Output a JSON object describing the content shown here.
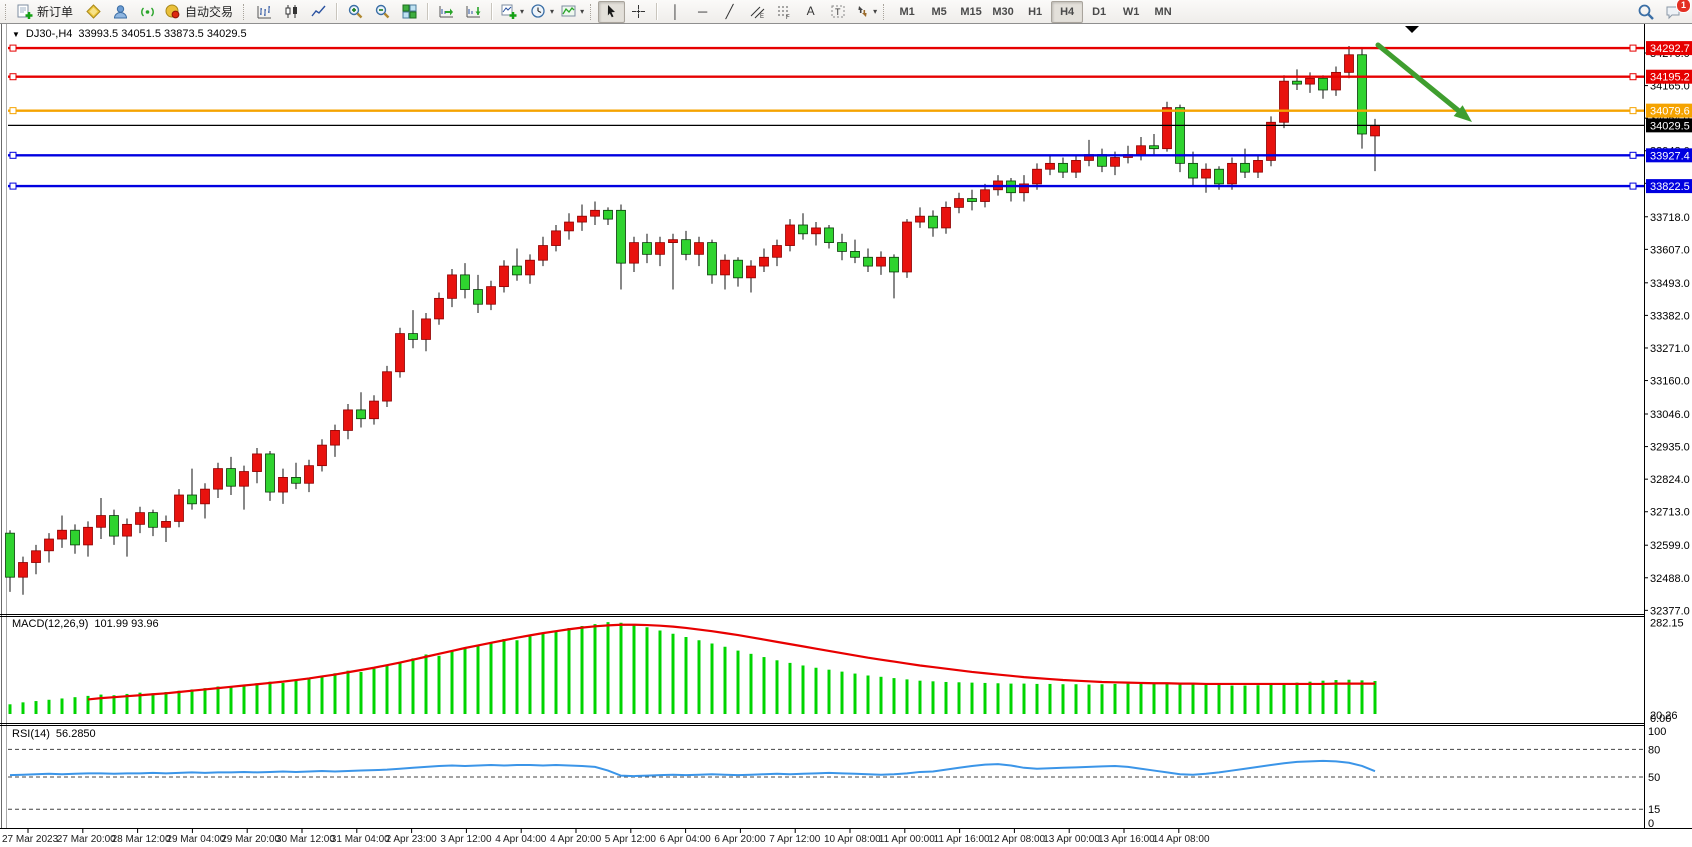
{
  "toolbar": {
    "new_order_label": "新订单",
    "auto_trading_label": "自动交易",
    "timeframes": [
      "M1",
      "M5",
      "M15",
      "M30",
      "H1",
      "H4",
      "D1",
      "W1",
      "MN"
    ],
    "active_timeframe": "H4",
    "chat_badge_count": "1",
    "icons": [
      "new-order-icon",
      "gold-icon",
      "community-icon",
      "signals-icon",
      "auto-trading-icon",
      "bar-chart-icon",
      "candlestick-icon",
      "line-chart-icon",
      "zoom-in-icon",
      "zoom-out-icon",
      "tile-windows-icon",
      "auto-scroll-icon",
      "chart-shift-icon",
      "new-chart-icon",
      "periods-clock-icon",
      "indicators-icon",
      "cursor-icon",
      "crosshair-icon",
      "vertical-line-icon",
      "horizontal-line-icon",
      "trendline-icon",
      "equidistant-channel-icon",
      "fibonacci-icon",
      "text-icon",
      "text-label-icon",
      "arrows-shapes-icon",
      "search-icon",
      "chat-icon"
    ]
  },
  "chart_header": {
    "symbol_period": "DJ30-,H4",
    "ohlc": "33993.5 34051.5 33873.5 34029.5"
  },
  "chart_data": {
    "type": "candlestick",
    "symbol": "DJ30-",
    "period": "H4",
    "current_ohlc": {
      "open": 33993.5,
      "high": 34051.5,
      "low": 33873.5,
      "close": 34029.5
    },
    "up_color": "#e8120e",
    "down_color": "#2fd32f",
    "y_ticks": [
      "34276.0",
      "34165.0",
      "34054.0",
      "33943.0",
      "33832.0",
      "33718.0",
      "33607.0",
      "33493.0",
      "33382.0",
      "33271.0",
      "33160.0",
      "33046.0",
      "32935.0",
      "32824.0",
      "32713.0",
      "32599.0",
      "32488.0",
      "32377.0"
    ],
    "x_ticks": [
      "27 Mar 2023",
      "27 Mar 20:00",
      "28 Mar 12:00",
      "29 Mar 04:00",
      "29 Mar 20:00",
      "30 Mar 12:00",
      "31 Mar 04:00",
      "2 Apr 23:00",
      "3 Apr 12:00",
      "4 Apr 04:00",
      "4 Apr 20:00",
      "5 Apr 12:00",
      "6 Apr 04:00",
      "6 Apr 20:00",
      "7 Apr 12:00",
      "10 Apr 08:00",
      "11 Apr 00:00",
      "11 Apr 16:00",
      "12 Apr 08:00",
      "13 Apr 00:00",
      "13 Apr 16:00",
      "14 Apr 08:00"
    ],
    "levels": [
      {
        "price": 34292.7,
        "label": "34292.7",
        "color": "#e60000",
        "current": false
      },
      {
        "price": 34195.2,
        "label": "34195.2",
        "color": "#e60000",
        "current": false
      },
      {
        "price": 34079.6,
        "label": "34079.6",
        "color": "#f5a300",
        "current": false
      },
      {
        "price": 34029.5,
        "label": "34029.5",
        "color": "#000000",
        "current": true
      },
      {
        "price": 33927.4,
        "label": "33927.4",
        "color": "#0000e0",
        "current": false
      },
      {
        "price": 33822.5,
        "label": "33822.5",
        "color": "#0000e0",
        "current": false
      }
    ],
    "trend_arrow": {
      "color": "#3f9e2f",
      "from_price": 34300,
      "to_price": 34040,
      "direction": "down-right"
    },
    "candles": [
      [
        32640,
        32650,
        32440,
        32490
      ],
      [
        32490,
        32560,
        32430,
        32540
      ],
      [
        32540,
        32600,
        32500,
        32580
      ],
      [
        32580,
        32640,
        32540,
        32620
      ],
      [
        32620,
        32700,
        32590,
        32650
      ],
      [
        32650,
        32670,
        32570,
        32600
      ],
      [
        32600,
        32680,
        32560,
        32660
      ],
      [
        32660,
        32760,
        32620,
        32700
      ],
      [
        32700,
        32720,
        32600,
        32630
      ],
      [
        32630,
        32690,
        32560,
        32670
      ],
      [
        32670,
        32730,
        32640,
        32710
      ],
      [
        32710,
        32720,
        32630,
        32660
      ],
      [
        32660,
        32700,
        32610,
        32680
      ],
      [
        32680,
        32790,
        32660,
        32770
      ],
      [
        32770,
        32860,
        32720,
        32740
      ],
      [
        32740,
        32810,
        32690,
        32790
      ],
      [
        32790,
        32880,
        32760,
        32860
      ],
      [
        32860,
        32900,
        32770,
        32800
      ],
      [
        32800,
        32870,
        32720,
        32850
      ],
      [
        32850,
        32930,
        32810,
        32910
      ],
      [
        32910,
        32920,
        32750,
        32780
      ],
      [
        32780,
        32860,
        32740,
        32830
      ],
      [
        32830,
        32880,
        32790,
        32810
      ],
      [
        32810,
        32890,
        32780,
        32870
      ],
      [
        32870,
        32960,
        32850,
        32940
      ],
      [
        32940,
        33010,
        32900,
        32990
      ],
      [
        32990,
        33080,
        32960,
        33060
      ],
      [
        33060,
        33120,
        33000,
        33030
      ],
      [
        33030,
        33110,
        33010,
        33090
      ],
      [
        33090,
        33210,
        33070,
        33190
      ],
      [
        33190,
        33340,
        33170,
        33320
      ],
      [
        33320,
        33400,
        33270,
        33300
      ],
      [
        33300,
        33390,
        33260,
        33370
      ],
      [
        33370,
        33460,
        33350,
        33440
      ],
      [
        33440,
        33540,
        33410,
        33520
      ],
      [
        33520,
        33560,
        33440,
        33470
      ],
      [
        33470,
        33520,
        33390,
        33420
      ],
      [
        33420,
        33500,
        33400,
        33480
      ],
      [
        33480,
        33570,
        33460,
        33550
      ],
      [
        33550,
        33610,
        33500,
        33520
      ],
      [
        33520,
        33590,
        33490,
        33570
      ],
      [
        33570,
        33650,
        33550,
        33620
      ],
      [
        33620,
        33690,
        33600,
        33670
      ],
      [
        33670,
        33730,
        33640,
        33700
      ],
      [
        33700,
        33760,
        33670,
        33720
      ],
      [
        33720,
        33770,
        33690,
        33740
      ],
      [
        33740,
        33750,
        33690,
        33710
      ],
      [
        33740,
        33760,
        33470,
        33560
      ],
      [
        33560,
        33650,
        33530,
        33630
      ],
      [
        33630,
        33660,
        33560,
        33590
      ],
      [
        33590,
        33650,
        33550,
        33630
      ],
      [
        33630,
        33660,
        33470,
        33640
      ],
      [
        33640,
        33670,
        33570,
        33590
      ],
      [
        33590,
        33650,
        33550,
        33630
      ],
      [
        33630,
        33640,
        33490,
        33520
      ],
      [
        33520,
        33590,
        33470,
        33570
      ],
      [
        33570,
        33580,
        33480,
        33510
      ],
      [
        33510,
        33570,
        33460,
        33550
      ],
      [
        33550,
        33610,
        33530,
        33580
      ],
      [
        33580,
        33640,
        33550,
        33620
      ],
      [
        33620,
        33710,
        33600,
        33690
      ],
      [
        33690,
        33730,
        33640,
        33660
      ],
      [
        33660,
        33700,
        33620,
        33680
      ],
      [
        33680,
        33690,
        33610,
        33630
      ],
      [
        33630,
        33660,
        33570,
        33600
      ],
      [
        33600,
        33640,
        33560,
        33580
      ],
      [
        33580,
        33610,
        33530,
        33550
      ],
      [
        33550,
        33600,
        33520,
        33580
      ],
      [
        33580,
        33590,
        33440,
        33530
      ],
      [
        33530,
        33710,
        33510,
        33700
      ],
      [
        33700,
        33750,
        33680,
        33720
      ],
      [
        33720,
        33740,
        33650,
        33680
      ],
      [
        33680,
        33770,
        33660,
        33750
      ],
      [
        33750,
        33800,
        33730,
        33780
      ],
      [
        33780,
        33810,
        33740,
        33770
      ],
      [
        33770,
        33830,
        33750,
        33810
      ],
      [
        33810,
        33860,
        33790,
        33840
      ],
      [
        33840,
        33850,
        33770,
        33800
      ],
      [
        33800,
        33860,
        33770,
        33830
      ],
      [
        33830,
        33900,
        33810,
        33880
      ],
      [
        33880,
        33930,
        33860,
        33900
      ],
      [
        33900,
        33920,
        33850,
        33870
      ],
      [
        33870,
        33930,
        33850,
        33910
      ],
      [
        33910,
        33980,
        33890,
        33930
      ],
      [
        33930,
        33950,
        33870,
        33890
      ],
      [
        33890,
        33940,
        33860,
        33920
      ],
      [
        33920,
        33960,
        33900,
        33930
      ],
      [
        33930,
        33990,
        33910,
        33960
      ],
      [
        33960,
        34000,
        33930,
        33950
      ],
      [
        33950,
        34110,
        33940,
        34090
      ],
      [
        34090,
        34100,
        33870,
        33900
      ],
      [
        33900,
        33940,
        33820,
        33850
      ],
      [
        33850,
        33900,
        33800,
        33880
      ],
      [
        33880,
        33890,
        33810,
        33830
      ],
      [
        33830,
        33920,
        33810,
        33900
      ],
      [
        33900,
        33950,
        33850,
        33870
      ],
      [
        33870,
        33930,
        33850,
        33910
      ],
      [
        33910,
        34060,
        33890,
        34040
      ],
      [
        34040,
        34200,
        34020,
        34180
      ],
      [
        34180,
        34220,
        34150,
        34170
      ],
      [
        34170,
        34210,
        34140,
        34190
      ],
      [
        34190,
        34200,
        34120,
        34150
      ],
      [
        34150,
        34230,
        34130,
        34210
      ],
      [
        34210,
        34300,
        34190,
        34270
      ],
      [
        34270,
        34290,
        33950,
        34000
      ],
      [
        33993.5,
        34051.5,
        33873.5,
        34029.5
      ]
    ],
    "macd": {
      "label": "MACD(12,26,9)",
      "values": "101.99 93.96",
      "axis_top": "282.15",
      "axis_bottom_overlap": [
        "20.26",
        "0.00"
      ],
      "histogram_color": "#00d400",
      "signal_color": "#e80000",
      "histogram": [
        30,
        36,
        40,
        44,
        48,
        52,
        56,
        60,
        58,
        62,
        66,
        64,
        68,
        72,
        76,
        80,
        85,
        82,
        88,
        95,
        100,
        96,
        104,
        110,
        118,
        126,
        134,
        130,
        140,
        150,
        160,
        172,
        184,
        180,
        194,
        204,
        212,
        222,
        232,
        228,
        240,
        250,
        258,
        266,
        272,
        278,
        284,
        282,
        276,
        268,
        258,
        248,
        238,
        228,
        218,
        208,
        196,
        186,
        176,
        166,
        158,
        150,
        143,
        137,
        131,
        125,
        119,
        115,
        111,
        107,
        103,
        101,
        99,
        98,
        97,
        96,
        95,
        94,
        94,
        93,
        93,
        92,
        92,
        91,
        92,
        93,
        94,
        95,
        96,
        97,
        96,
        94,
        92,
        90,
        88,
        88,
        89,
        91,
        94,
        97,
        100,
        103,
        105,
        106,
        104,
        102
      ],
      "signal": [
        24,
        27,
        30,
        33,
        37,
        41,
        45,
        49,
        52,
        55,
        58,
        61,
        64,
        68,
        72,
        76,
        80,
        84,
        88,
        92,
        96,
        100,
        105,
        110,
        116,
        122,
        129,
        136,
        143,
        151,
        159,
        168,
        177,
        186,
        195,
        204,
        212,
        220,
        228,
        236,
        243,
        250,
        256,
        262,
        267,
        271,
        274,
        276,
        276,
        275,
        273,
        270,
        266,
        261,
        256,
        250,
        244,
        237,
        230,
        223,
        216,
        209,
        202,
        195,
        188,
        181,
        174,
        168,
        162,
        156,
        150,
        145,
        140,
        135,
        130,
        126,
        122,
        118,
        114,
        111,
        108,
        105,
        103,
        101,
        99,
        98,
        97,
        96,
        95,
        95,
        94,
        94,
        93,
        93,
        93,
        93,
        93,
        93,
        93,
        93,
        93,
        93,
        94,
        94,
        94,
        94
      ]
    },
    "rsi": {
      "label": "RSI(14)",
      "value": "56.2850",
      "line_color": "#3b95e8",
      "axis_labels": [
        "100",
        "80",
        "50",
        "15",
        "0"
      ],
      "dashed_levels": [
        80,
        50,
        15
      ],
      "line": [
        52,
        52.5,
        53,
        53.5,
        53,
        53.5,
        54,
        54,
        53.5,
        54,
        54,
        54.5,
        54,
        54.5,
        55,
        54.5,
        55,
        55,
        55.5,
        55,
        55.5,
        56,
        55.5,
        56,
        56.5,
        56,
        56.5,
        57,
        57.5,
        58,
        59,
        60,
        61,
        62,
        62.5,
        62,
        62.5,
        63,
        62.5,
        63,
        63,
        62.5,
        63,
        62.5,
        62,
        61,
        57,
        51.5,
        51,
        51.5,
        52,
        52.5,
        52,
        52.5,
        53,
        52.5,
        52,
        52.5,
        53,
        53.5,
        53,
        53.5,
        54,
        54.5,
        54,
        53.5,
        53,
        52.5,
        53,
        54,
        55.5,
        56,
        58,
        60,
        62,
        63.5,
        64,
        62.5,
        60,
        59,
        59.5,
        60,
        60.5,
        61,
        61.5,
        62,
        61,
        59,
        57,
        55,
        53,
        52.5,
        53.5,
        55,
        57,
        59,
        61,
        63,
        65,
        66.5,
        67,
        67.5,
        67,
        65.5,
        62,
        56.3
      ]
    }
  }
}
